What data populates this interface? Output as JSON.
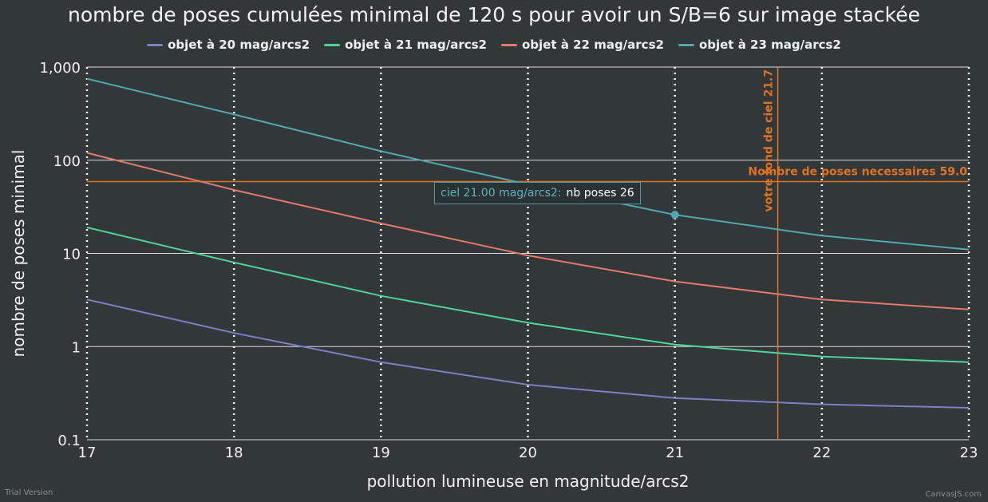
{
  "chart_data": {
    "type": "line",
    "title": "nombre de poses cumulées minimal de 120 s pour avoir un S/B=6 sur image stackée",
    "xlabel": "pollution lumineuse en magnitude/arcs2",
    "ylabel": "nombre de poses minimal",
    "xlim": [
      17,
      23
    ],
    "ylim": [
      0.1,
      1000
    ],
    "y_scale": "log",
    "x_ticks": [
      "17",
      "18",
      "19",
      "20",
      "21",
      "22",
      "23"
    ],
    "y_ticks": [
      "0.1",
      "1",
      "10",
      "100",
      "1,000"
    ],
    "grid": {
      "x": "dotted-white",
      "y": "solid-white"
    },
    "legend_position": "top",
    "x": [
      17,
      18,
      19,
      20,
      21,
      22,
      23
    ],
    "series": [
      {
        "name": "objet à 20 mag/arcs2",
        "color": "#7b80c2",
        "values": [
          3.2,
          1.4,
          0.68,
          0.39,
          0.28,
          0.24,
          0.22
        ]
      },
      {
        "name": "objet à 21 mag/arcs2",
        "color": "#4fd49a",
        "values": [
          19,
          8.0,
          3.5,
          1.8,
          1.05,
          0.78,
          0.68
        ]
      },
      {
        "name": "objet à 22 mag/arcs2",
        "color": "#e07a6a",
        "values": [
          120,
          48,
          21,
          9.5,
          5.0,
          3.2,
          2.5
        ]
      },
      {
        "name": "objet à 23 mag/arcs2",
        "color": "#4fa8ae",
        "values": [
          750,
          310,
          125,
          55,
          26,
          15.5,
          11
        ]
      }
    ],
    "reference_lines": [
      {
        "orientation": "horizontal",
        "value": 59.0,
        "label": "Nombre de poses necessaires 59.0",
        "color": "#e07320"
      },
      {
        "orientation": "vertical",
        "value": 21.7,
        "label": "votre fond de ciel 21.7",
        "color": "#e07320"
      }
    ],
    "highlight": {
      "series_index": 3,
      "x": 21,
      "y": 26
    },
    "tooltip": {
      "label": "ciel 21.00 mag/arcs2:",
      "value": "nb poses 26"
    }
  },
  "footer": {
    "trial": "Trial Version",
    "credit": "CanvasJS.com"
  }
}
